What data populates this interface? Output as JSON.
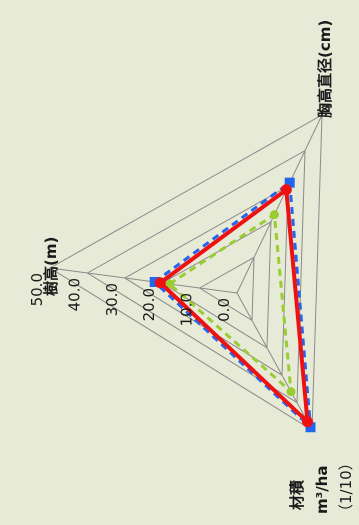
{
  "chart_data": {
    "type": "radar",
    "axes": [
      {
        "label": "樹高(m)"
      },
      {
        "label": "胸高直径(cm)"
      },
      {
        "label_lines": [
          "材積",
          "m³/ha",
          "（1/10）"
        ]
      }
    ],
    "ticks": [
      "0.0",
      "10.0",
      "20.0",
      "30.0",
      "40.0",
      "50.0"
    ],
    "range": [
      0,
      50
    ],
    "grid": true,
    "series": [
      {
        "style": "solid",
        "color": "#ee1111",
        "marker": "circle",
        "values": [
          20.5,
          29,
          47
        ]
      },
      {
        "style": "dashed",
        "color": "#2266ee",
        "marker": "square",
        "values": [
          22,
          31,
          49
        ]
      },
      {
        "style": "dashed",
        "color": "#9acd32",
        "marker": "circle",
        "values": [
          18,
          22,
          36
        ]
      }
    ]
  }
}
